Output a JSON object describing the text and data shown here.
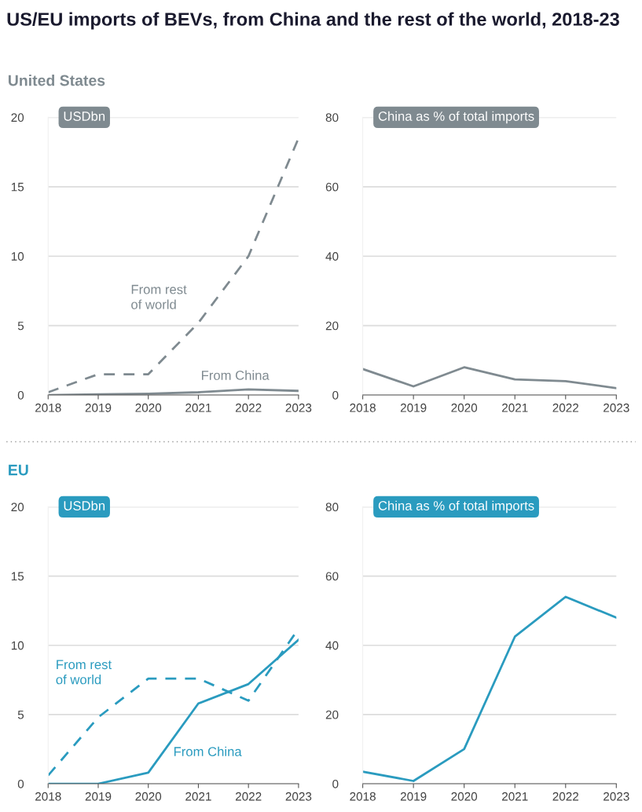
{
  "chart_data": [
    {
      "type": "line",
      "title": "US/EU imports of BEVs, from China and the rest of the world, 2018-23",
      "subtitle": "United States",
      "ylabel": "USDbn",
      "categories": [
        "2018",
        "2019",
        "2020",
        "2021",
        "2022",
        "2023"
      ],
      "ylim": [
        0,
        20
      ],
      "yticks": [
        0,
        5,
        10,
        15,
        20
      ],
      "grid": "y",
      "series": [
        {
          "name": "From rest of world",
          "color": "#7f8a90",
          "line_style": "dashed",
          "values": [
            0.2,
            1.5,
            1.5,
            5.2,
            10,
            18.5
          ]
        },
        {
          "name": "From China",
          "color": "#7f8a90",
          "line_style": "solid",
          "values": [
            0,
            0.05,
            0.1,
            0.2,
            0.4,
            0.3
          ]
        }
      ]
    },
    {
      "type": "line",
      "ylabel": "China as % of total imports",
      "categories": [
        "2018",
        "2019",
        "2020",
        "2021",
        "2022",
        "2023"
      ],
      "ylim": [
        0,
        80
      ],
      "yticks": [
        0,
        20,
        40,
        60,
        80
      ],
      "grid": "y",
      "series": [
        {
          "color": "#7f8a90",
          "line_style": "solid",
          "values": [
            7.5,
            2.5,
            8,
            4.5,
            4,
            2
          ]
        }
      ]
    },
    {
      "type": "line",
      "subtitle": "EU",
      "ylabel": "USDbn",
      "categories": [
        "2018",
        "2019",
        "2020",
        "2021",
        "2022",
        "2023"
      ],
      "ylim": [
        0,
        20
      ],
      "yticks": [
        0,
        5,
        10,
        15,
        20
      ],
      "grid": "y",
      "series": [
        {
          "name": "From rest of world",
          "color": "#2a9bbf",
          "line_style": "dashed",
          "values": [
            0.6,
            4.8,
            7.6,
            7.6,
            6.0,
            11.2
          ]
        },
        {
          "name": "From China",
          "color": "#2a9bbf",
          "line_style": "solid",
          "values": [
            0,
            0,
            0.8,
            5.8,
            7.2,
            10.4
          ]
        }
      ]
    },
    {
      "type": "line",
      "ylabel": "China as % of total imports",
      "categories": [
        "2018",
        "2019",
        "2020",
        "2021",
        "2022",
        "2023"
      ],
      "ylim": [
        0,
        80
      ],
      "yticks": [
        0,
        20,
        40,
        60,
        80
      ],
      "grid": "y",
      "series": [
        {
          "color": "#2a9bbf",
          "line_style": "solid",
          "values": [
            3.5,
            0.8,
            10,
            42.5,
            54,
            48
          ]
        }
      ]
    }
  ]
}
